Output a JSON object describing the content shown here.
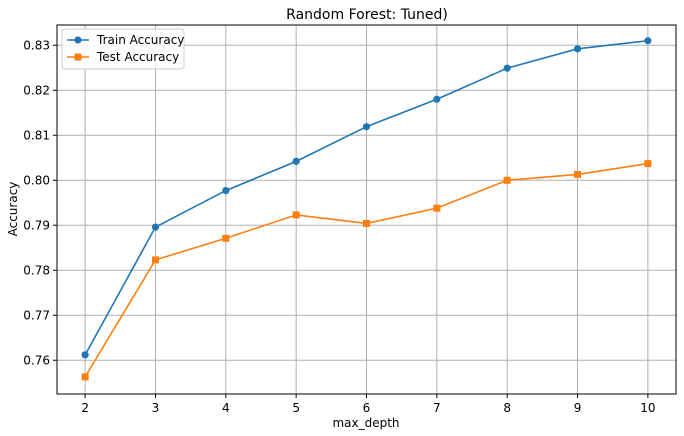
{
  "chart_data": {
    "type": "line",
    "title": "Random Forest: Tuned)",
    "xlabel": "max_depth",
    "ylabel": "Accuracy",
    "x": [
      2,
      3,
      4,
      5,
      6,
      7,
      8,
      9,
      10
    ],
    "xlim": [
      1.6,
      10.4
    ],
    "ylim": [
      0.7525,
      0.8345
    ],
    "yticks": [
      0.76,
      0.77,
      0.78,
      0.79,
      0.8,
      0.81,
      0.82,
      0.83
    ],
    "grid": true,
    "legend_position": "upper-left",
    "series": [
      {
        "name": "Train Accuracy",
        "color": "#1f77b4",
        "marker": "circle",
        "values": [
          0.7612,
          0.7896,
          0.7977,
          0.8042,
          0.8119,
          0.818,
          0.8249,
          0.8292,
          0.831
        ]
      },
      {
        "name": "Test Accuracy",
        "color": "#ff7f0e",
        "marker": "square",
        "values": [
          0.7563,
          0.7823,
          0.7871,
          0.7923,
          0.7904,
          0.7938,
          0.8,
          0.8013,
          0.8037
        ]
      }
    ]
  }
}
